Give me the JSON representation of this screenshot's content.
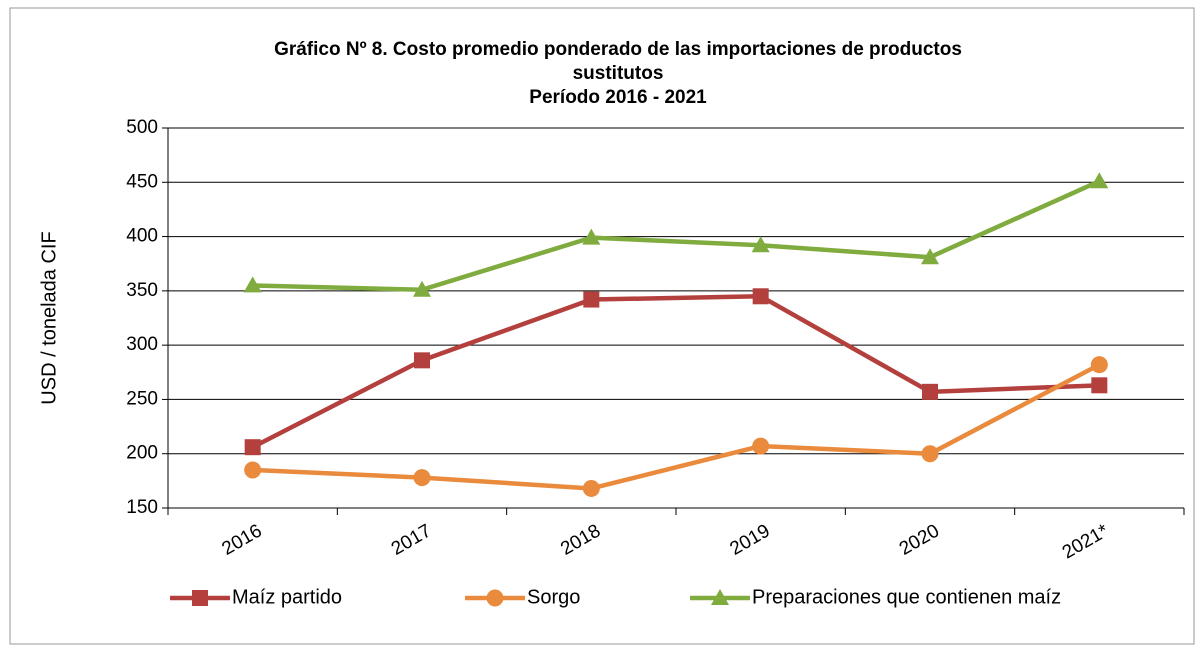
{
  "chart_data": {
    "type": "line",
    "title": [
      "Gráfico Nº 8. Costo promedio ponderado de las importaciones de productos",
      "sustitutos",
      "Período 2016 - 2021"
    ],
    "y_label": "USD / tonelada CIF",
    "categories": [
      "2016",
      "2017",
      "2018",
      "2019",
      "2020",
      "2021*"
    ],
    "series": [
      {
        "name": "Maíz partido",
        "color": "#b3403d",
        "marker": "square",
        "values": [
          206,
          286,
          342,
          345,
          257,
          263
        ]
      },
      {
        "name": "Sorgo",
        "color": "#e98a3c",
        "marker": "circle",
        "values": [
          185,
          178,
          168,
          207,
          200,
          282
        ]
      },
      {
        "name": "Preparaciones que contienen maíz",
        "color": "#80ab3e",
        "marker": "triangle",
        "values": [
          355,
          351,
          399,
          392,
          381,
          451
        ]
      }
    ],
    "ylim": [
      150,
      500
    ],
    "yticks": [
      150,
      200,
      250,
      300,
      350,
      400,
      450,
      500
    ],
    "grid": true,
    "legend": "bottom"
  }
}
